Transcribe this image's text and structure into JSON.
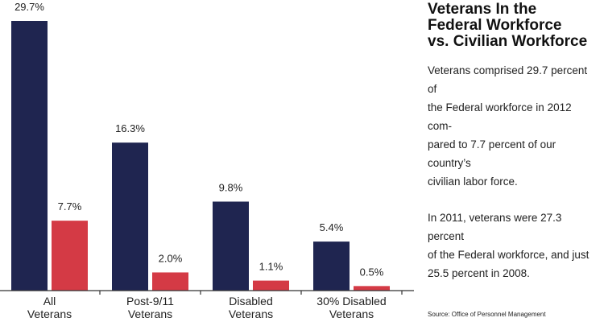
{
  "chart_data": {
    "type": "bar",
    "categories": [
      [
        "All",
        "Veterans"
      ],
      [
        "Post-9/11",
        "Veterans"
      ],
      [
        "Disabled",
        "Veterans"
      ],
      [
        "30% Disabled",
        "Veterans"
      ]
    ],
    "series": [
      {
        "values": [
          29.7,
          16.3,
          9.8,
          5.4
        ],
        "labels": [
          "29.7%",
          "16.3%",
          "9.8%",
          "5.4%"
        ],
        "color": "#1f2550"
      },
      {
        "values": [
          7.7,
          2.0,
          1.1,
          0.5
        ],
        "labels": [
          "7.7%",
          "2.0%",
          "1.1%",
          "0.5%"
        ],
        "color": "#d43a45"
      }
    ],
    "ylim": [
      0,
      29.7
    ],
    "grid": false,
    "legend": "none"
  },
  "sidebar": {
    "title_lines": [
      "Veterans In the",
      "Federal Workforce",
      "vs. Civilian Workforce"
    ],
    "paragraph1_lines": [
      "Veterans comprised 29.7 percent of",
      "the Federal workforce in 2012 com-",
      "pared to 7.7 percent of our country’s",
      "civilian labor force."
    ],
    "paragraph2_lines": [
      "In 2011, veterans were 27.3 percent",
      "of the Federal workforce, and just",
      "25.5 percent in 2008."
    ],
    "source": "Source: Office of Personnel Management"
  },
  "colors": {
    "axis": "#333333"
  }
}
